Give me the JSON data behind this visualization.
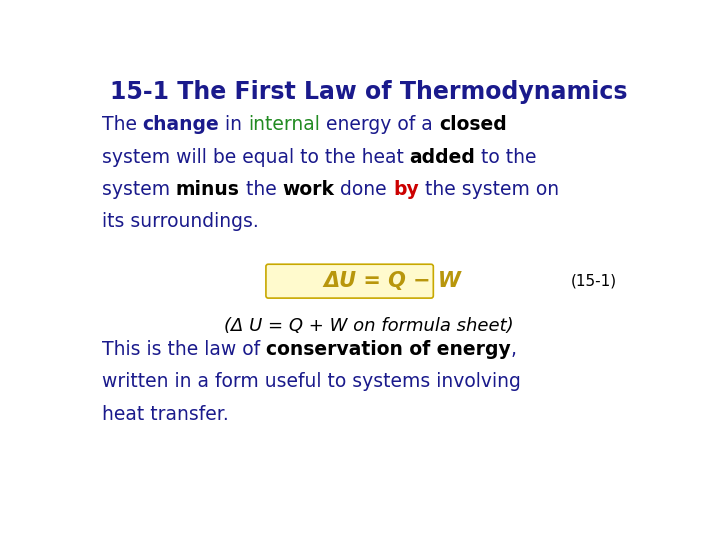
{
  "title": "15-1 The First Law of Thermodynamics",
  "title_color": "#1a1a8c",
  "title_fontsize": 17,
  "background_color": "#ffffff",
  "p1_line1": [
    {
      "text": "The ",
      "color": "#1a1a8c",
      "bold": false,
      "italic": false
    },
    {
      "text": "change",
      "color": "#1a1a8c",
      "bold": true,
      "italic": false
    },
    {
      "text": " in ",
      "color": "#1a1a8c",
      "bold": false,
      "italic": false
    },
    {
      "text": "internal",
      "color": "#228B22",
      "bold": false,
      "italic": false
    },
    {
      "text": " energy of a ",
      "color": "#1a1a8c",
      "bold": false,
      "italic": false
    },
    {
      "text": "closed",
      "color": "#000000",
      "bold": true,
      "italic": false
    }
  ],
  "p1_line2": [
    {
      "text": "system will be equal to the heat ",
      "color": "#1a1a8c",
      "bold": false,
      "italic": false
    },
    {
      "text": "added",
      "color": "#000000",
      "bold": true,
      "italic": false
    },
    {
      "text": " to the",
      "color": "#1a1a8c",
      "bold": false,
      "italic": false
    }
  ],
  "p1_line3": [
    {
      "text": "system ",
      "color": "#1a1a8c",
      "bold": false,
      "italic": false
    },
    {
      "text": "minus",
      "color": "#000000",
      "bold": true,
      "italic": false
    },
    {
      "text": " the ",
      "color": "#1a1a8c",
      "bold": false,
      "italic": false
    },
    {
      "text": "work",
      "color": "#000000",
      "bold": true,
      "italic": false
    },
    {
      "text": " done ",
      "color": "#1a1a8c",
      "bold": false,
      "italic": false
    },
    {
      "text": "by",
      "color": "#cc0000",
      "bold": true,
      "italic": false
    },
    {
      "text": " the system on",
      "color": "#1a1a8c",
      "bold": false,
      "italic": false
    }
  ],
  "p1_line4": [
    {
      "text": "its surroundings.",
      "color": "#1a1a8c",
      "bold": false,
      "italic": false
    }
  ],
  "formula_text": "ΔU = Q − W",
  "formula_color": "#b8960c",
  "formula_bg": "#fffacd",
  "formula_border": "#c8a800",
  "formula_label": "(15-1)",
  "formula_label_color": "#000000",
  "note_text": "(Δ U = Q + W on formula sheet)",
  "note_color": "#000000",
  "p2_line1": [
    {
      "text": "This is the law of ",
      "color": "#1a1a8c",
      "bold": false,
      "italic": false
    },
    {
      "text": "conservation of energy",
      "color": "#000000",
      "bold": true,
      "italic": false
    },
    {
      "text": ",",
      "color": "#1a1a8c",
      "bold": false,
      "italic": false
    }
  ],
  "p2_line2": [
    {
      "text": "written in a form useful to systems involving",
      "color": "#1a1a8c",
      "bold": false,
      "italic": false
    }
  ],
  "p2_line3": [
    {
      "text": "heat transfer.",
      "color": "#1a1a8c",
      "bold": false,
      "italic": false
    }
  ]
}
